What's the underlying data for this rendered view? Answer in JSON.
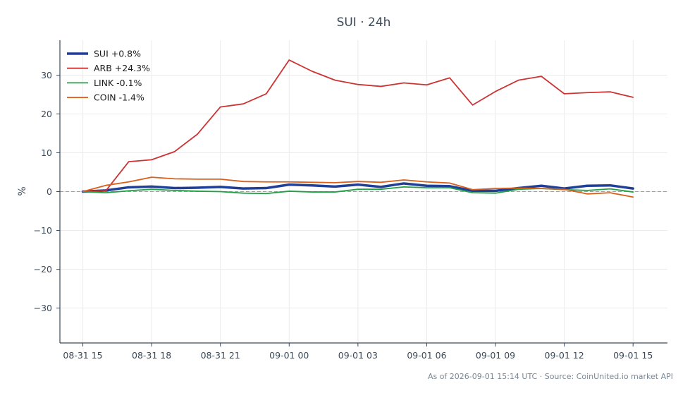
{
  "chart_data": {
    "type": "line",
    "title": "SUI · 24h",
    "xlabel": "",
    "ylabel": "%",
    "ylim": [
      -39,
      39
    ],
    "yticks": [
      30,
      20,
      10,
      0,
      -10,
      -20,
      -30
    ],
    "ytick_labels": [
      "30",
      "20",
      "10",
      "0",
      "−10",
      "−20",
      "−30"
    ],
    "xlim": [
      -1,
      25.5
    ],
    "xtick_positions": [
      0,
      3,
      6,
      9,
      12,
      15,
      18,
      21,
      24
    ],
    "xtick_labels": [
      "08-31 15",
      "08-31 18",
      "08-31 21",
      "09-01 00",
      "09-01 03",
      "09-01 06",
      "09-01 09",
      "09-01 12",
      "09-01 15"
    ],
    "x": [
      "08-31 15:00",
      "08-31 16:00",
      "08-31 17:00",
      "08-31 18:00",
      "08-31 19:00",
      "08-31 20:00",
      "08-31 21:00",
      "08-31 22:00",
      "08-31 23:00",
      "09-01 00:00",
      "09-01 01:00",
      "09-01 02:00",
      "09-01 03:00",
      "09-01 04:00",
      "09-01 05:00",
      "09-01 06:00",
      "09-01 07:00",
      "09-01 08:00",
      "09-01 09:00",
      "09-01 10:00",
      "09-01 11:00",
      "09-01 12:00",
      "09-01 13:00",
      "09-01 14:00",
      "09-01 15:00"
    ],
    "grid": true,
    "zero_line": true,
    "legend_position": "top-left",
    "series": [
      {
        "name": "SUI +0.8%",
        "color": "#1f3f99",
        "width": 3.5,
        "values": [
          0.0,
          0.3,
          1.1,
          1.3,
          0.9,
          1.0,
          1.2,
          0.8,
          0.9,
          1.8,
          1.6,
          1.3,
          1.8,
          1.2,
          2.1,
          1.5,
          1.4,
          0.2,
          0.2,
          0.9,
          1.5,
          0.8,
          1.5,
          1.6,
          0.8
        ]
      },
      {
        "name": "ARB +24.3%",
        "color": "#cc3333",
        "width": 1.8,
        "values": [
          0.0,
          0.2,
          7.7,
          8.2,
          10.3,
          14.8,
          21.8,
          22.6,
          25.2,
          33.9,
          31.0,
          28.7,
          27.6,
          27.1,
          28.0,
          27.5,
          29.3,
          22.3,
          25.8,
          28.7,
          29.7,
          25.2,
          25.5,
          25.7,
          24.3
        ]
      },
      {
        "name": "LINK -0.1%",
        "color": "#22a045",
        "width": 1.8,
        "values": [
          0.0,
          -0.3,
          0.2,
          0.6,
          0.3,
          0.1,
          0.0,
          -0.4,
          -0.5,
          0.1,
          -0.1,
          -0.1,
          0.6,
          0.6,
          1.2,
          1.0,
          1.0,
          -0.3,
          -0.4,
          0.6,
          0.8,
          0.5,
          0.3,
          0.7,
          -0.1
        ]
      },
      {
        "name": "COIN -1.4%",
        "color": "#d95f1a",
        "width": 1.8,
        "values": [
          0.0,
          1.6,
          2.5,
          3.7,
          3.3,
          3.2,
          3.2,
          2.6,
          2.5,
          2.5,
          2.4,
          2.3,
          2.6,
          2.4,
          3.0,
          2.5,
          2.2,
          0.5,
          0.8,
          0.9,
          0.8,
          0.6,
          -0.6,
          -0.3,
          -1.4
        ]
      }
    ]
  },
  "footer": {
    "text": "As of 2026-09-01 15:14 UTC · Source: CoinUnited.io market API"
  },
  "colors": {
    "axis": "#3a4a5a",
    "grid": "#ebebeb",
    "zero_line": "#8fa3b0"
  }
}
